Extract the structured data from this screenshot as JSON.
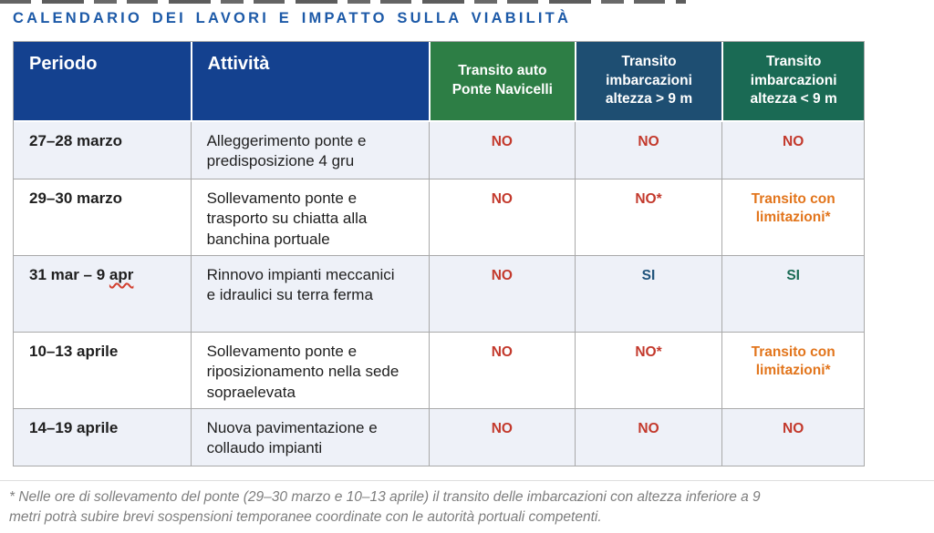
{
  "title": "CALENDARIO DEI LAVORI E IMPATTO SULLA VIABILITÀ",
  "table": {
    "columns": {
      "periodo": "Periodo",
      "attivita": "Attività",
      "transito_auto": "Transito auto\nPonte Navicelli",
      "transito_over9": "Transito\nimbarcazioni\naltezza > 9 m",
      "transito_under9": "Transito\nimbarcazioni\naltezza < 9 m"
    },
    "rows": [
      {
        "period": "27–28 marzo",
        "activity": "Alleggerimento ponte e predisposizione 4 gru",
        "auto": "NO",
        "over9": "NO",
        "under9": "NO"
      },
      {
        "period": "29–30 marzo",
        "activity": "Sollevamento ponte e trasporto su chiatta alla banchina portuale",
        "auto": "NO",
        "over9": "NO*",
        "under9": "Transito con limitazioni*"
      },
      {
        "period_prefix": "31 mar – 9",
        "period_squiggle": "apr",
        "activity": "Rinnovo impianti meccanici e idraulici su terra ferma",
        "auto": "NO",
        "over9": "SI",
        "under9": "SI"
      },
      {
        "period": "10–13 aprile",
        "activity": "Sollevamento ponte e riposizionamento nella sede sopraelevata",
        "auto": "NO",
        "over9": "NO*",
        "under9": "Transito con limitazioni*"
      },
      {
        "period": "14–19 aprile",
        "activity": "Nuova pavimentazione e collaudo impianti",
        "auto": "NO",
        "over9": "NO",
        "under9": "NO"
      }
    ]
  },
  "footnote": "* Nelle ore di sollevamento del ponte (29–30 marzo e 10–13 aprile) il transito delle imbarcazioni con altezza inferiore a 9\nmetri potrà subire brevi sospensioni temporanee coordinate con le autorità portuali competenti.",
  "colors": {
    "title_blue": "#1d5aa8",
    "header_navy": "#14418f",
    "header_green": "#2d7e45",
    "header_steel_blue": "#1e4e72",
    "header_teal": "#1a6a54",
    "status_no_red": "#c3392c",
    "status_limited_orange": "#e2751c",
    "status_si_blue": "#20547c",
    "status_si_teal": "#1a6b55",
    "row_alt_bg": "#eef1f8",
    "footnote_gray": "#7e7e7e"
  }
}
